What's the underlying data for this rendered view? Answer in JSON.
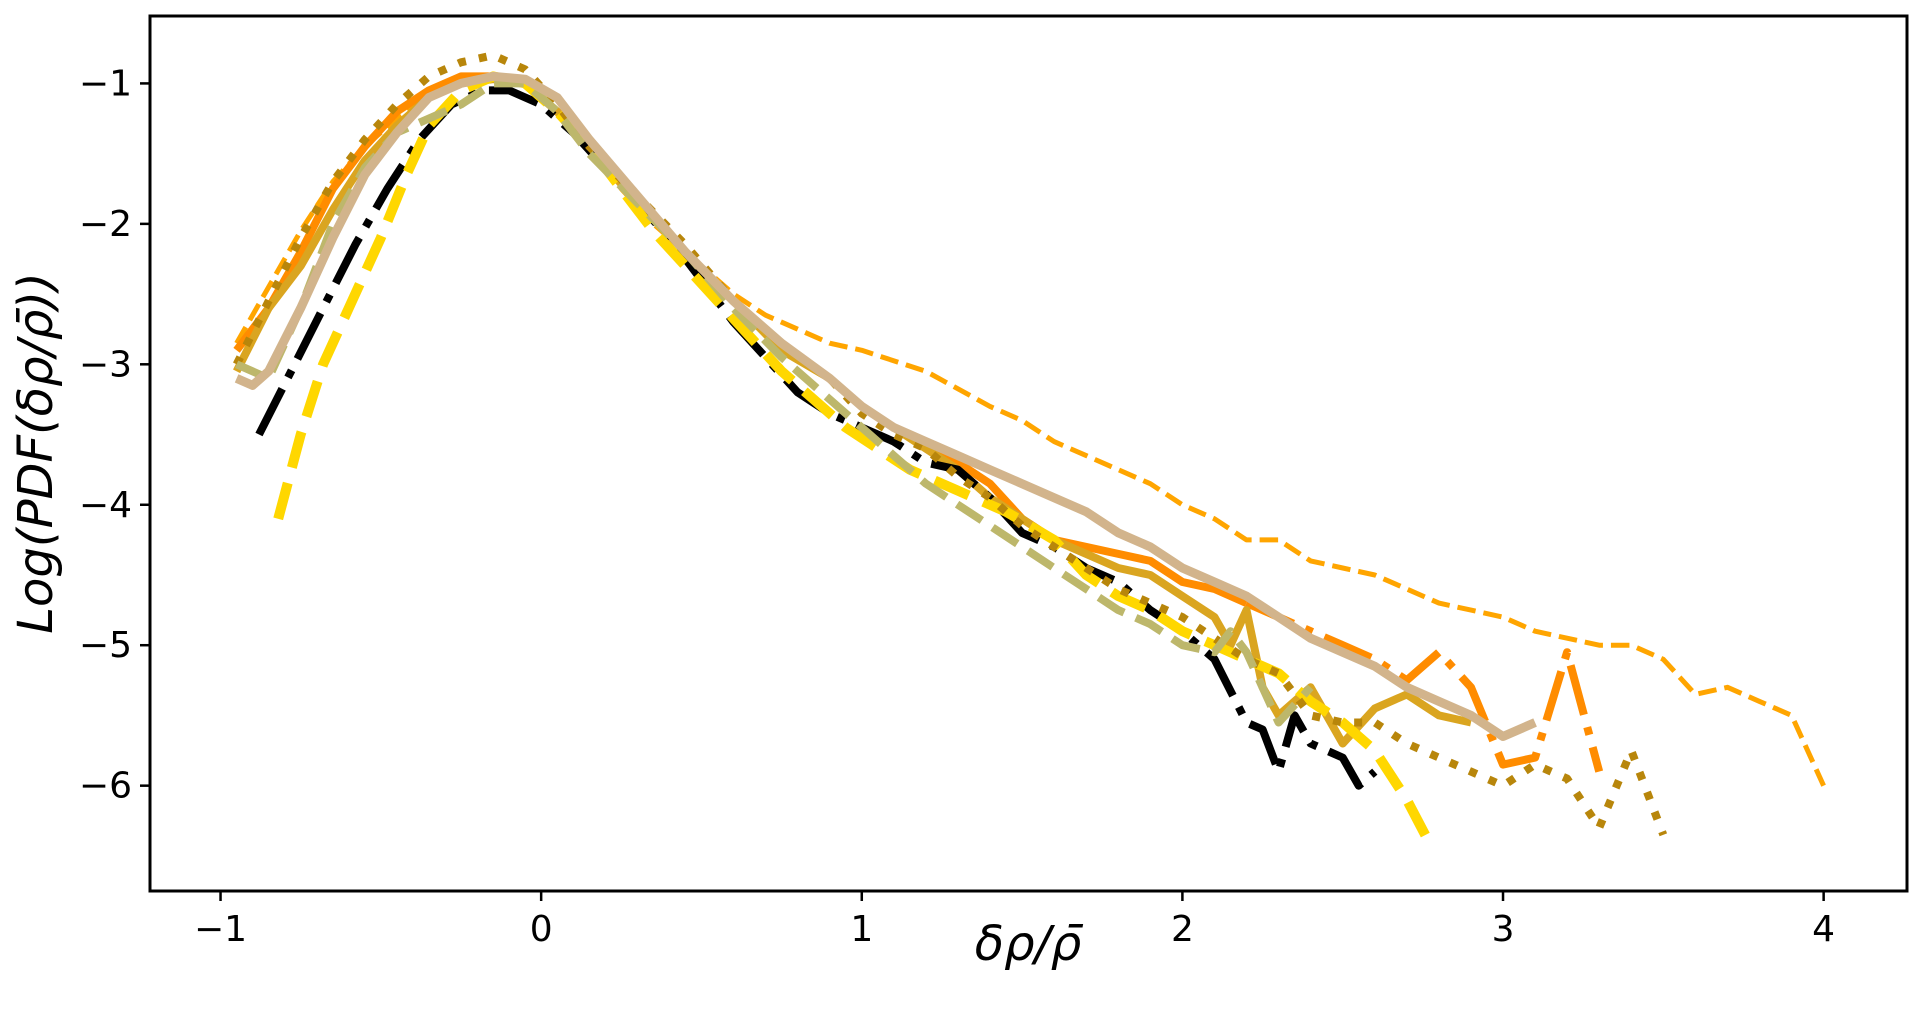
{
  "chart_data": {
    "type": "line",
    "title": "",
    "xlabel": "δρ/ρ̄",
    "ylabel": "Log(PDF(δρ/ρ̄))",
    "xlim": [
      -1.22,
      4.26
    ],
    "ylim": [
      -6.75,
      -0.52
    ],
    "xticks": [
      -1,
      0,
      1,
      2,
      3,
      4
    ],
    "yticks": [
      -6,
      -5,
      -4,
      -3,
      -2,
      -1
    ],
    "xtick_labels": [
      "−1",
      "0",
      "1",
      "2",
      "3",
      "4"
    ],
    "ytick_labels": [
      "−6",
      "−5",
      "−4",
      "−3",
      "−2",
      "−1"
    ],
    "grid": false,
    "legend": "none",
    "series": [
      {
        "name": "orange-dashed-thin",
        "color": "#FFA500",
        "style": "dashed",
        "width": 5,
        "x": [
          -0.95,
          -0.85,
          -0.75,
          -0.65,
          -0.55,
          -0.45,
          -0.35,
          -0.25,
          -0.15,
          -0.05,
          0.05,
          0.15,
          0.25,
          0.35,
          0.5,
          0.6,
          0.7,
          0.8,
          0.9,
          1.0,
          1.2,
          1.4,
          1.5,
          1.6,
          1.7,
          1.8,
          1.9,
          2.0,
          2.1,
          2.2,
          2.3,
          2.4,
          2.5,
          2.6,
          2.7,
          2.8,
          2.9,
          3.0,
          3.1,
          3.2,
          3.3,
          3.4,
          3.5,
          3.6,
          3.7,
          3.8,
          3.9,
          4.0
        ],
        "y": [
          -2.85,
          -2.45,
          -2.05,
          -1.7,
          -1.45,
          -1.25,
          -1.1,
          -1.0,
          -0.97,
          -1.0,
          -1.2,
          -1.45,
          -1.75,
          -2.0,
          -2.3,
          -2.5,
          -2.65,
          -2.75,
          -2.85,
          -2.9,
          -3.05,
          -3.3,
          -3.4,
          -3.55,
          -3.65,
          -3.75,
          -3.85,
          -4.0,
          -4.1,
          -4.25,
          -4.25,
          -4.4,
          -4.45,
          -4.5,
          -4.6,
          -4.7,
          -4.75,
          -4.8,
          -4.9,
          -4.95,
          -5.0,
          -5.0,
          -5.1,
          -5.35,
          -5.3,
          -5.4,
          -5.5,
          -6.0
        ]
      },
      {
        "name": "orange-solid",
        "color": "#FF8C00",
        "style": "solid",
        "width": 8,
        "x": [
          -0.95,
          -0.85,
          -0.75,
          -0.65,
          -0.55,
          -0.45,
          -0.35,
          -0.25,
          -0.15,
          -0.05,
          0.05,
          0.15,
          0.3,
          0.45,
          0.6,
          0.75,
          0.9,
          1.0,
          1.1,
          1.2,
          1.3,
          1.4,
          1.5,
          1.6,
          1.7,
          1.8,
          1.9,
          2.0,
          2.1,
          2.2
        ],
        "y": [
          -2.9,
          -2.6,
          -2.2,
          -1.75,
          -1.45,
          -1.2,
          -1.05,
          -0.95,
          -0.95,
          -1.0,
          -1.2,
          -1.45,
          -1.8,
          -2.2,
          -2.55,
          -2.85,
          -3.1,
          -3.3,
          -3.45,
          -3.55,
          -3.7,
          -3.85,
          -4.1,
          -4.25,
          -4.3,
          -4.35,
          -4.4,
          -4.55,
          -4.6,
          -4.7
        ]
      },
      {
        "name": "orange-dashdot",
        "color": "#FF8C00",
        "style": "dashdot",
        "width": 8,
        "x": [
          2.2,
          2.3,
          2.4,
          2.5,
          2.6,
          2.7,
          2.8,
          2.9,
          3.0,
          3.1,
          3.2,
          3.3
        ],
        "y": [
          -4.7,
          -4.8,
          -4.9,
          -5.0,
          -5.1,
          -5.25,
          -5.05,
          -5.3,
          -5.85,
          -5.8,
          -5.05,
          -5.9
        ]
      },
      {
        "name": "goldenrod-solid",
        "color": "#DAA520",
        "style": "solid",
        "width": 8,
        "x": [
          -0.95,
          -0.85,
          -0.75,
          -0.65,
          -0.55,
          -0.45,
          -0.35,
          -0.25,
          -0.15,
          -0.05,
          0.05,
          0.15,
          0.3,
          0.45,
          0.6,
          0.75,
          0.9,
          1.0,
          1.1,
          1.2,
          1.3,
          1.4,
          1.5,
          1.6,
          1.7,
          1.8,
          1.9,
          2.0,
          2.1,
          2.15,
          2.2,
          2.25,
          2.3,
          2.4,
          2.5,
          2.6,
          2.7,
          2.8,
          2.9
        ],
        "y": [
          -3.05,
          -2.6,
          -2.3,
          -1.9,
          -1.55,
          -1.3,
          -1.1,
          -1.0,
          -0.97,
          -1.0,
          -1.2,
          -1.45,
          -1.85,
          -2.2,
          -2.55,
          -2.9,
          -3.1,
          -3.3,
          -3.45,
          -3.6,
          -3.75,
          -3.95,
          -4.1,
          -4.25,
          -4.35,
          -4.45,
          -4.5,
          -4.65,
          -4.8,
          -5.0,
          -4.75,
          -5.3,
          -5.5,
          -5.3,
          -5.7,
          -5.45,
          -5.35,
          -5.5,
          -5.55
        ]
      },
      {
        "name": "black-dashdot",
        "color": "#000000",
        "style": "dashdot",
        "width": 8,
        "x": [
          -0.88,
          -0.78,
          -0.68,
          -0.58,
          -0.48,
          -0.38,
          -0.28,
          -0.18,
          -0.1,
          0.0,
          0.1,
          0.2,
          0.3,
          0.4,
          0.5,
          0.6,
          0.7,
          0.8,
          0.9,
          1.0,
          1.1,
          1.2,
          1.3,
          1.4,
          1.5,
          1.6,
          1.7,
          1.8,
          1.9,
          2.0,
          2.1,
          2.2,
          2.25,
          2.3,
          2.35,
          2.4,
          2.5,
          2.55,
          2.6
        ],
        "y": [
          -3.5,
          -3.05,
          -2.6,
          -2.15,
          -1.75,
          -1.4,
          -1.15,
          -1.05,
          -1.05,
          -1.15,
          -1.35,
          -1.6,
          -1.85,
          -2.1,
          -2.4,
          -2.7,
          -2.95,
          -3.2,
          -3.35,
          -3.45,
          -3.55,
          -3.7,
          -3.75,
          -3.95,
          -4.2,
          -4.3,
          -4.45,
          -4.55,
          -4.75,
          -4.9,
          -5.1,
          -5.55,
          -5.6,
          -5.9,
          -5.5,
          -5.7,
          -5.8,
          -6.0,
          -5.9
        ]
      },
      {
        "name": "gold-dashed",
        "color": "#FFD700",
        "style": "dashed",
        "width": 10,
        "x": [
          -0.82,
          -0.75,
          -0.68,
          -0.6,
          -0.5,
          -0.42,
          -0.35,
          -0.25,
          -0.15,
          -0.05,
          0.05,
          0.15,
          0.25,
          0.35,
          0.45,
          0.55,
          0.65,
          0.75,
          0.85,
          0.95,
          1.05,
          1.15,
          1.3,
          1.45,
          1.6,
          1.7,
          1.8,
          1.9,
          2.0,
          2.1,
          2.2,
          2.3,
          2.4,
          2.5,
          2.6,
          2.7,
          2.78
        ],
        "y": [
          -4.1,
          -3.5,
          -3.0,
          -2.6,
          -2.1,
          -1.65,
          -1.3,
          -1.05,
          -0.95,
          -1.0,
          -1.2,
          -1.45,
          -1.75,
          -2.05,
          -2.3,
          -2.55,
          -2.8,
          -3.05,
          -3.25,
          -3.45,
          -3.6,
          -3.75,
          -3.9,
          -4.05,
          -4.25,
          -4.5,
          -4.65,
          -4.75,
          -4.9,
          -5.0,
          -5.1,
          -5.2,
          -5.4,
          -5.55,
          -5.75,
          -6.1,
          -6.45
        ]
      },
      {
        "name": "darkgoldenrod-dotted",
        "color": "#B8860B",
        "style": "dotted",
        "width": 8,
        "x": [
          -0.95,
          -0.85,
          -0.75,
          -0.65,
          -0.55,
          -0.45,
          -0.35,
          -0.25,
          -0.15,
          -0.05,
          0.05,
          0.15,
          0.3,
          0.45,
          0.6,
          0.75,
          0.9,
          1.0,
          1.1,
          1.2,
          1.3,
          1.4,
          1.5,
          1.6,
          1.7,
          1.8,
          1.9,
          2.0,
          2.1,
          2.2,
          2.3,
          2.4,
          2.5,
          2.6,
          2.7,
          2.8,
          2.9,
          3.0,
          3.1,
          3.2,
          3.3,
          3.4,
          3.5
        ],
        "y": [
          -3.0,
          -2.55,
          -2.1,
          -1.7,
          -1.4,
          -1.15,
          -0.95,
          -0.85,
          -0.8,
          -0.9,
          -1.15,
          -1.45,
          -1.8,
          -2.15,
          -2.55,
          -2.85,
          -3.1,
          -3.35,
          -3.5,
          -3.6,
          -3.8,
          -3.95,
          -4.15,
          -4.3,
          -4.45,
          -4.6,
          -4.7,
          -4.8,
          -4.95,
          -5.1,
          -5.2,
          -5.5,
          -5.55,
          -5.55,
          -5.7,
          -5.8,
          -5.9,
          -6.0,
          -5.85,
          -5.95,
          -6.3,
          -5.75,
          -6.35
        ]
      },
      {
        "name": "darkkhaki-dashed",
        "color": "#BDB76B",
        "style": "dashed",
        "width": 8,
        "x": [
          -0.95,
          -0.85,
          -0.75,
          -0.65,
          -0.55,
          -0.45,
          -0.35,
          -0.25,
          -0.15,
          -0.05,
          0.05,
          0.15,
          0.3,
          0.45,
          0.6,
          0.75,
          0.9,
          1.0,
          1.1,
          1.2,
          1.3,
          1.4,
          1.5,
          1.6,
          1.7,
          1.8,
          1.9,
          2.0,
          2.1,
          2.15,
          2.2,
          2.3,
          2.4
        ],
        "y": [
          -3.0,
          -3.1,
          -2.6,
          -2.0,
          -1.6,
          -1.35,
          -1.25,
          -1.15,
          -1.0,
          -1.0,
          -1.2,
          -1.5,
          -1.85,
          -2.2,
          -2.6,
          -2.95,
          -3.25,
          -3.45,
          -3.65,
          -3.85,
          -4.0,
          -4.15,
          -4.3,
          -4.45,
          -4.6,
          -4.75,
          -4.85,
          -5.0,
          -5.05,
          -4.9,
          -5.05,
          -5.55,
          -5.3
        ]
      },
      {
        "name": "tan-solid",
        "color": "#D2B48C",
        "style": "solid",
        "width": 9,
        "x": [
          -0.95,
          -0.9,
          -0.85,
          -0.75,
          -0.65,
          -0.55,
          -0.45,
          -0.35,
          -0.25,
          -0.15,
          -0.05,
          0.05,
          0.15,
          0.3,
          0.45,
          0.6,
          0.75,
          0.9,
          1.0,
          1.1,
          1.2,
          1.3,
          1.4,
          1.5,
          1.6,
          1.7,
          1.8,
          1.9,
          2.0,
          2.1,
          2.2,
          2.3,
          2.4,
          2.5,
          2.6,
          2.7,
          2.8,
          2.9,
          3.0,
          3.1
        ],
        "y": [
          -3.1,
          -3.15,
          -3.05,
          -2.6,
          -2.1,
          -1.65,
          -1.35,
          -1.1,
          -1.0,
          -0.95,
          -0.97,
          -1.1,
          -1.4,
          -1.8,
          -2.2,
          -2.55,
          -2.85,
          -3.1,
          -3.3,
          -3.45,
          -3.55,
          -3.65,
          -3.75,
          -3.85,
          -3.95,
          -4.05,
          -4.2,
          -4.3,
          -4.45,
          -4.55,
          -4.65,
          -4.8,
          -4.95,
          -5.05,
          -5.15,
          -5.3,
          -5.4,
          -5.5,
          -5.65,
          -5.55
        ]
      }
    ]
  }
}
